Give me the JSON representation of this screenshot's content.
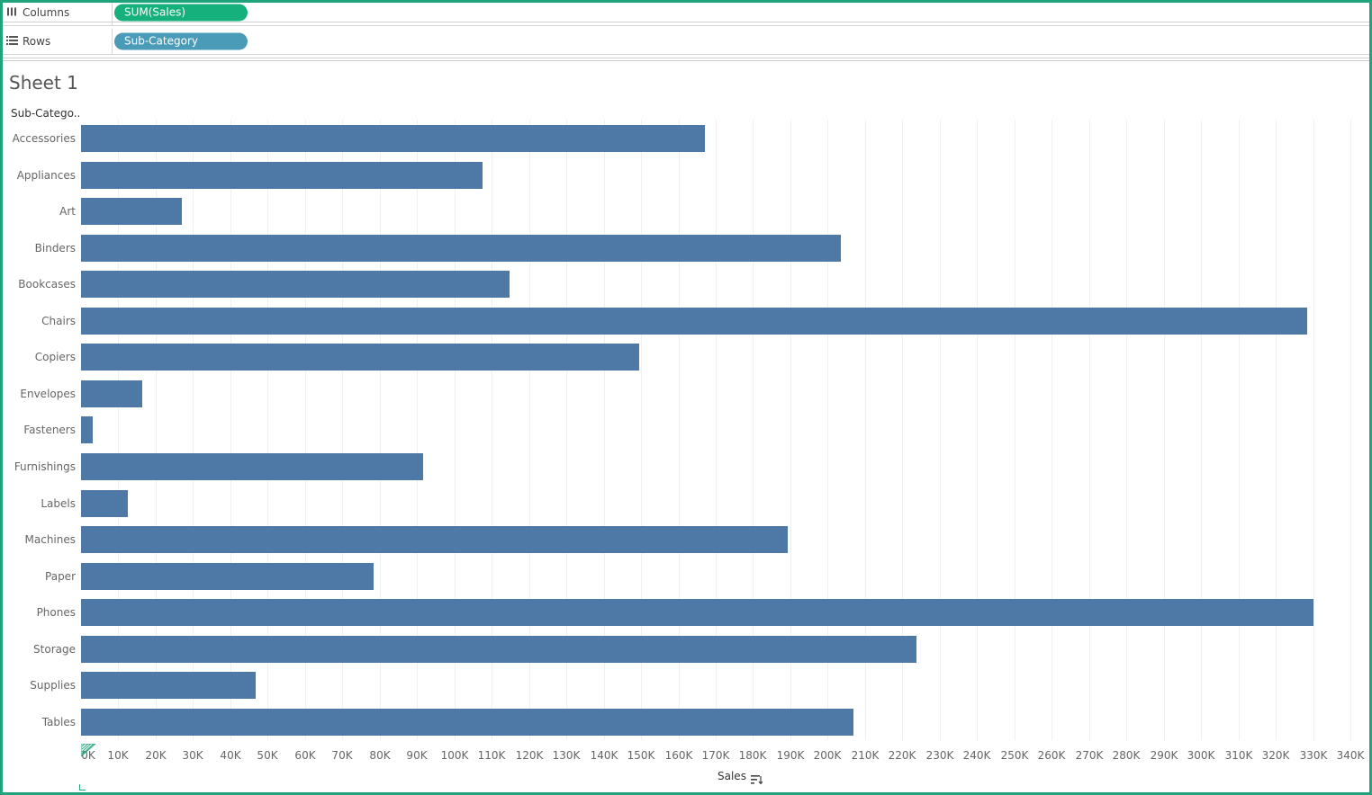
{
  "shelves": {
    "columns": {
      "label": "Columns",
      "pill": "SUM(Sales)",
      "pill_color": "#16b07c"
    },
    "rows": {
      "label": "Rows",
      "pill": "Sub-Category",
      "pill_color": "#4a9bb8"
    }
  },
  "sheet": {
    "title": "Sheet 1",
    "row_header": "Sub-Catego.."
  },
  "colors": {
    "bar": "#4e79a7",
    "frame": "#1ea37a"
  },
  "chart_data": {
    "type": "bar",
    "orientation": "horizontal",
    "categories": [
      "Accessories",
      "Appliances",
      "Art",
      "Binders",
      "Bookcases",
      "Chairs",
      "Copiers",
      "Envelopes",
      "Fasteners",
      "Furnishings",
      "Labels",
      "Machines",
      "Paper",
      "Phones",
      "Storage",
      "Supplies",
      "Tables"
    ],
    "values": [
      167026,
      107532,
      27119,
      203413,
      114880,
      328449,
      149528,
      16476,
      3024,
      91705,
      12486,
      189239,
      78479,
      330007,
      223844,
      46674,
      206966
    ],
    "xlabel": "Sales",
    "ylabel": "Sub-Catego..",
    "xlim": [
      0,
      340000
    ],
    "xticks": [
      "0K",
      "10K",
      "20K",
      "30K",
      "40K",
      "50K",
      "60K",
      "70K",
      "80K",
      "90K",
      "100K",
      "110K",
      "120K",
      "130K",
      "140K",
      "150K",
      "160K",
      "170K",
      "180K",
      "190K",
      "200K",
      "210K",
      "220K",
      "230K",
      "240K",
      "250K",
      "260K",
      "270K",
      "280K",
      "290K",
      "300K",
      "310K",
      "320K",
      "330K",
      "340K"
    ],
    "grid": true
  },
  "icons": {
    "columns": "columns-icon",
    "rows": "rows-icon",
    "sort": "sort-descending-icon"
  }
}
